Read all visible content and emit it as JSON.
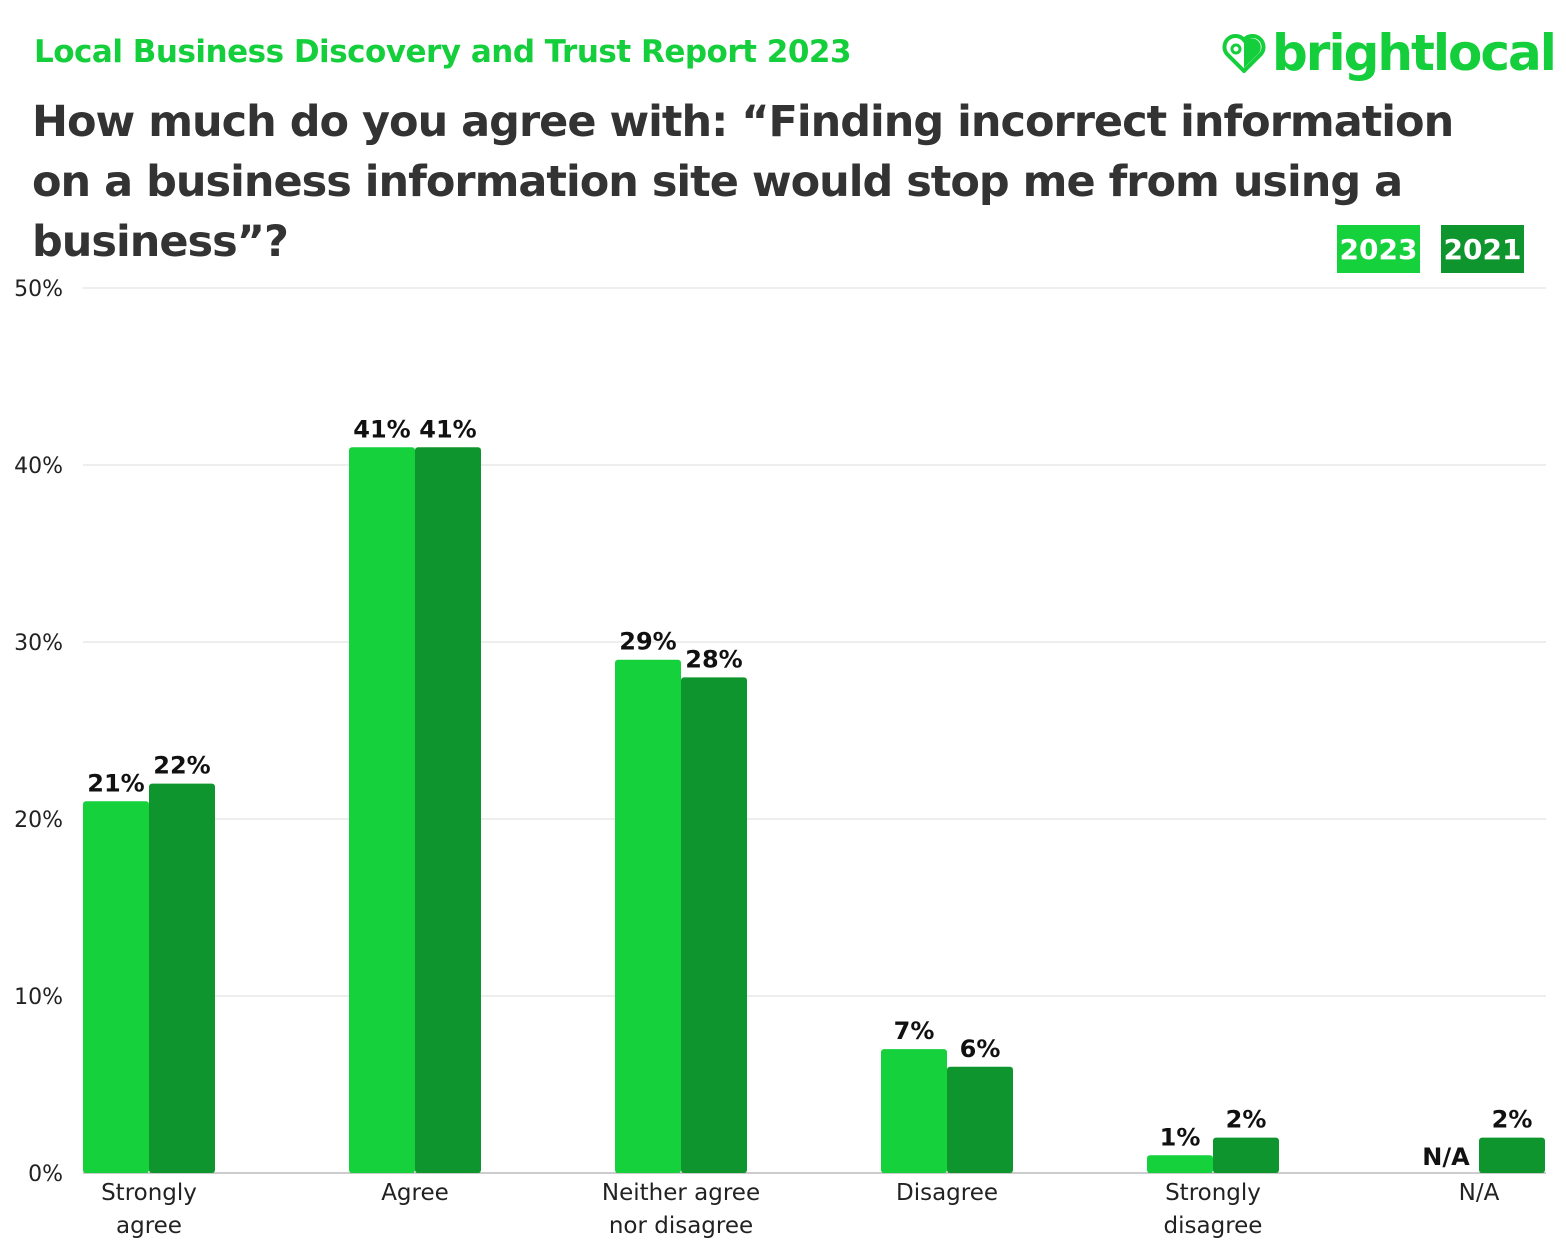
{
  "header": {
    "subtitle": "Local Business Discovery and Trust Report 2023",
    "title": "How much do you agree with: “Finding incorrect information on a business information site would stop me from using a business”?",
    "logo_text": "brightlocal"
  },
  "colors": {
    "series_2023": "#14d13c",
    "series_2021": "#0f952e",
    "brand": "#14cf3b",
    "title": "#333333"
  },
  "chart_data": {
    "type": "bar",
    "title": "How much do you agree with: “Finding incorrect information on a business information site would stop me from using a business”?",
    "xlabel": "",
    "ylabel": "",
    "ylim": [
      0,
      50
    ],
    "yticks": [
      0,
      10,
      20,
      30,
      40,
      50
    ],
    "ytick_labels": [
      "0%",
      "10%",
      "20%",
      "30%",
      "40%",
      "50%"
    ],
    "grid": true,
    "legend_position": "top-right",
    "categories": [
      [
        "Strongly",
        "agree"
      ],
      [
        "Agree"
      ],
      [
        "Neither agree",
        "nor disagree"
      ],
      [
        "Disagree"
      ],
      [
        "Strongly",
        "disagree"
      ],
      [
        "N/A"
      ]
    ],
    "series": [
      {
        "name": "2023",
        "values": [
          21,
          41,
          29,
          7,
          1,
          null
        ],
        "labels": [
          "21%",
          "41%",
          "29%",
          "7%",
          "1%",
          "N/A"
        ]
      },
      {
        "name": "2021",
        "values": [
          22,
          41,
          28,
          6,
          2,
          2
        ],
        "labels": [
          "22%",
          "41%",
          "28%",
          "6%",
          "2%",
          "2%"
        ]
      }
    ]
  }
}
